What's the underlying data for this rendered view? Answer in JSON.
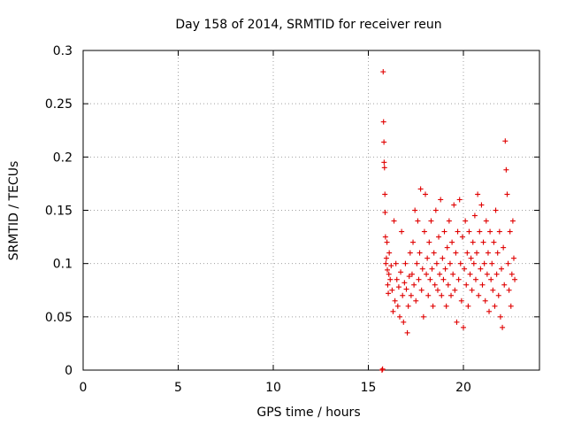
{
  "chart_data": {
    "type": "scatter",
    "title": "Day 158 of 2014, SRMTID for receiver reun",
    "xlabel": "GPS time / hours",
    "ylabel": "SRMTID / TECUs",
    "xlim": [
      0,
      24
    ],
    "ylim": [
      0,
      0.3
    ],
    "xticks": [
      0,
      5,
      10,
      15,
      20
    ],
    "xtick_labels": [
      "0",
      "5",
      "10",
      "15",
      "20"
    ],
    "yticks": [
      0,
      0.05,
      0.1,
      0.15,
      0.2,
      0.25,
      0.3
    ],
    "ytick_labels": [
      "0",
      "0.05",
      "0.1",
      "0.15",
      "0.2",
      "0.25",
      "0.3"
    ],
    "grid": true,
    "marker": "+",
    "color": "#e00000",
    "series": [
      {
        "name": "SRMTID",
        "points": [
          [
            15.72,
            0.0
          ],
          [
            15.75,
            0.001
          ],
          [
            15.78,
            0.28
          ],
          [
            15.8,
            0.233
          ],
          [
            15.82,
            0.214
          ],
          [
            15.83,
            0.195
          ],
          [
            15.85,
            0.19
          ],
          [
            15.87,
            0.165
          ],
          [
            15.88,
            0.148
          ],
          [
            15.9,
            0.125
          ],
          [
            15.92,
            0.1
          ],
          [
            15.95,
            0.105
          ],
          [
            15.98,
            0.12
          ],
          [
            16.0,
            0.094
          ],
          [
            16.02,
            0.08
          ],
          [
            16.05,
            0.072
          ],
          [
            16.08,
            0.09
          ],
          [
            16.1,
            0.11
          ],
          [
            16.15,
            0.085
          ],
          [
            16.2,
            0.098
          ],
          [
            16.25,
            0.075
          ],
          [
            16.3,
            0.055
          ],
          [
            16.35,
            0.14
          ],
          [
            16.4,
            0.065
          ],
          [
            16.45,
            0.1
          ],
          [
            16.5,
            0.085
          ],
          [
            16.55,
            0.06
          ],
          [
            16.6,
            0.078
          ],
          [
            16.65,
            0.05
          ],
          [
            16.7,
            0.092
          ],
          [
            16.75,
            0.13
          ],
          [
            16.8,
            0.07
          ],
          [
            16.85,
            0.045
          ],
          [
            16.9,
            0.082
          ],
          [
            16.95,
            0.1
          ],
          [
            17.0,
            0.076
          ],
          [
            17.05,
            0.035
          ],
          [
            17.1,
            0.06
          ],
          [
            17.15,
            0.088
          ],
          [
            17.2,
            0.11
          ],
          [
            17.25,
            0.07
          ],
          [
            17.3,
            0.09
          ],
          [
            17.35,
            0.12
          ],
          [
            17.4,
            0.08
          ],
          [
            17.45,
            0.15
          ],
          [
            17.5,
            0.065
          ],
          [
            17.55,
            0.1
          ],
          [
            17.6,
            0.14
          ],
          [
            17.65,
            0.085
          ],
          [
            17.7,
            0.11
          ],
          [
            17.75,
            0.17
          ],
          [
            17.8,
            0.075
          ],
          [
            17.85,
            0.095
          ],
          [
            17.9,
            0.05
          ],
          [
            17.95,
            0.13
          ],
          [
            18.0,
            0.165
          ],
          [
            18.05,
            0.09
          ],
          [
            18.1,
            0.105
          ],
          [
            18.15,
            0.07
          ],
          [
            18.2,
            0.12
          ],
          [
            18.25,
            0.085
          ],
          [
            18.3,
            0.14
          ],
          [
            18.35,
            0.095
          ],
          [
            18.4,
            0.06
          ],
          [
            18.45,
            0.11
          ],
          [
            18.5,
            0.08
          ],
          [
            18.55,
            0.15
          ],
          [
            18.6,
            0.1
          ],
          [
            18.65,
            0.075
          ],
          [
            18.7,
            0.125
          ],
          [
            18.75,
            0.09
          ],
          [
            18.8,
            0.16
          ],
          [
            18.85,
            0.07
          ],
          [
            18.9,
            0.105
          ],
          [
            18.95,
            0.085
          ],
          [
            19.0,
            0.13
          ],
          [
            19.05,
            0.095
          ],
          [
            19.1,
            0.06
          ],
          [
            19.15,
            0.115
          ],
          [
            19.2,
            0.08
          ],
          [
            19.25,
            0.14
          ],
          [
            19.3,
            0.1
          ],
          [
            19.35,
            0.07
          ],
          [
            19.4,
            0.12
          ],
          [
            19.45,
            0.09
          ],
          [
            19.5,
            0.155
          ],
          [
            19.55,
            0.075
          ],
          [
            19.6,
            0.11
          ],
          [
            19.65,
            0.045
          ],
          [
            19.7,
            0.13
          ],
          [
            19.75,
            0.085
          ],
          [
            19.8,
            0.16
          ],
          [
            19.85,
            0.1
          ],
          [
            19.9,
            0.065
          ],
          [
            19.95,
            0.125
          ],
          [
            20.0,
            0.04
          ],
          [
            20.05,
            0.095
          ],
          [
            20.1,
            0.14
          ],
          [
            20.15,
            0.08
          ],
          [
            20.2,
            0.11
          ],
          [
            20.25,
            0.06
          ],
          [
            20.3,
            0.13
          ],
          [
            20.35,
            0.09
          ],
          [
            20.4,
            0.105
          ],
          [
            20.45,
            0.075
          ],
          [
            20.5,
            0.12
          ],
          [
            20.55,
            0.1
          ],
          [
            20.6,
            0.145
          ],
          [
            20.65,
            0.085
          ],
          [
            20.7,
            0.11
          ],
          [
            20.75,
            0.165
          ],
          [
            20.8,
            0.07
          ],
          [
            20.85,
            0.13
          ],
          [
            20.9,
            0.095
          ],
          [
            20.95,
            0.155
          ],
          [
            21.0,
            0.08
          ],
          [
            21.05,
            0.12
          ],
          [
            21.1,
            0.1
          ],
          [
            21.15,
            0.065
          ],
          [
            21.2,
            0.14
          ],
          [
            21.25,
            0.09
          ],
          [
            21.3,
            0.11
          ],
          [
            21.35,
            0.055
          ],
          [
            21.4,
            0.13
          ],
          [
            21.45,
            0.085
          ],
          [
            21.5,
            0.1
          ],
          [
            21.55,
            0.075
          ],
          [
            21.6,
            0.12
          ],
          [
            21.65,
            0.06
          ],
          [
            21.7,
            0.15
          ],
          [
            21.75,
            0.09
          ],
          [
            21.8,
            0.11
          ],
          [
            21.85,
            0.07
          ],
          [
            21.9,
            0.13
          ],
          [
            21.95,
            0.05
          ],
          [
            22.0,
            0.095
          ],
          [
            22.05,
            0.04
          ],
          [
            22.1,
            0.115
          ],
          [
            22.15,
            0.08
          ],
          [
            22.2,
            0.215
          ],
          [
            22.25,
            0.188
          ],
          [
            22.3,
            0.165
          ],
          [
            22.35,
            0.1
          ],
          [
            22.4,
            0.075
          ],
          [
            22.45,
            0.13
          ],
          [
            22.5,
            0.06
          ],
          [
            22.55,
            0.09
          ],
          [
            22.6,
            0.14
          ],
          [
            22.65,
            0.105
          ],
          [
            22.7,
            0.085
          ]
        ]
      }
    ]
  }
}
